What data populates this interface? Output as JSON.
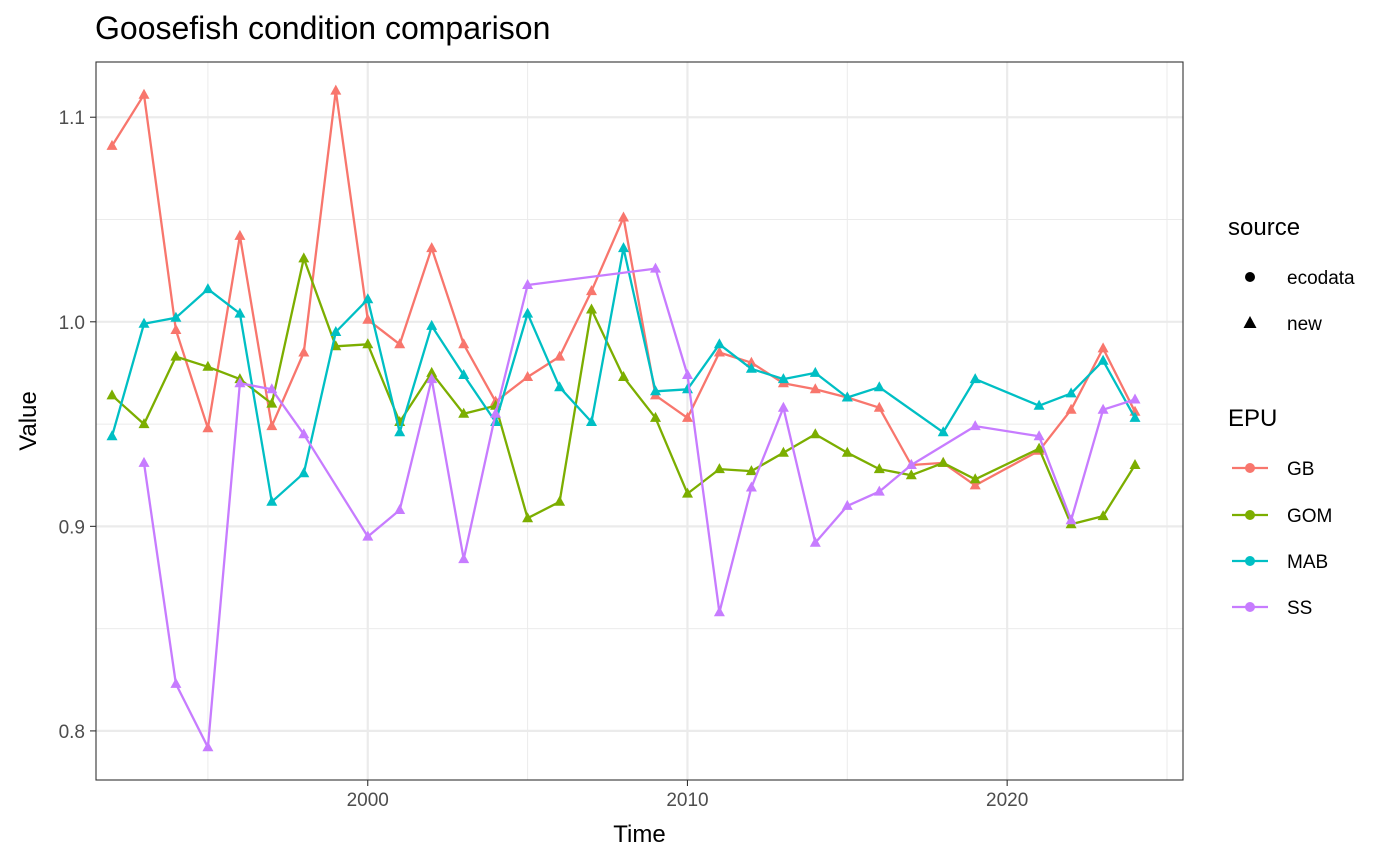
{
  "chart_data": {
    "type": "line",
    "title": "Goosefish condition comparison",
    "xlabel": "Time",
    "ylabel": "Value",
    "xlim": [
      1991.5,
      2025.5
    ],
    "ylim": [
      0.776,
      1.127
    ],
    "x_ticks": [
      2000,
      2010,
      2020
    ],
    "x_tick_labels": [
      "2000",
      "2010",
      "2020"
    ],
    "y_ticks": [
      0.8,
      0.9,
      1.0,
      1.1
    ],
    "y_tick_labels": [
      "0.8",
      "0.9",
      "1.0",
      "1.1"
    ],
    "grid": true,
    "legend_position": "right",
    "legends": {
      "source": {
        "title": "source",
        "items": [
          {
            "label": "ecodata",
            "shape": "circle"
          },
          {
            "label": "new",
            "shape": "triangle"
          }
        ]
      },
      "epu": {
        "title": "EPU",
        "items": [
          {
            "label": "GB",
            "color": "#F8766D"
          },
          {
            "label": "GOM",
            "color": "#7CAE00"
          },
          {
            "label": "MAB",
            "color": "#00BFC4"
          },
          {
            "label": "SS",
            "color": "#C77CFF"
          }
        ]
      }
    },
    "series": [
      {
        "name": "GB",
        "color": "#F8766D",
        "x": [
          1992,
          1993,
          1994,
          1995,
          1996,
          1997,
          1998,
          1999,
          2000,
          2001,
          2002,
          2003,
          2004,
          2005,
          2006,
          2007,
          2008,
          2009,
          2010,
          2011,
          2012,
          2013,
          2014,
          2015,
          2016,
          2017,
          2018,
          2019,
          2021,
          2022,
          2023,
          2024
        ],
        "y": [
          1.086,
          1.111,
          0.996,
          0.948,
          1.042,
          0.949,
          0.985,
          1.113,
          1.001,
          0.989,
          1.036,
          0.989,
          0.961,
          0.973,
          0.983,
          1.015,
          1.051,
          0.964,
          0.953,
          0.985,
          0.98,
          0.97,
          0.967,
          0.963,
          0.958,
          0.93,
          0.931,
          0.92,
          0.937,
          0.957,
          0.987,
          0.956
        ]
      },
      {
        "name": "GOM",
        "color": "#7CAE00",
        "x": [
          1992,
          1993,
          1994,
          1995,
          1996,
          1997,
          1998,
          1999,
          2000,
          2001,
          2002,
          2003,
          2004,
          2005,
          2006,
          2007,
          2008,
          2009,
          2010,
          2011,
          2012,
          2013,
          2014,
          2015,
          2016,
          2017,
          2018,
          2019,
          2021,
          2022,
          2023,
          2024
        ],
        "y": [
          0.964,
          0.95,
          0.983,
          0.978,
          0.972,
          0.96,
          1.031,
          0.988,
          0.989,
          0.951,
          0.975,
          0.955,
          0.959,
          0.904,
          0.912,
          1.006,
          0.973,
          0.953,
          0.916,
          0.928,
          0.927,
          0.936,
          0.945,
          0.936,
          0.928,
          0.925,
          0.931,
          0.923,
          0.938,
          0.901,
          0.905,
          0.93
        ]
      },
      {
        "name": "MAB",
        "color": "#00BFC4",
        "x": [
          1992,
          1993,
          1994,
          1995,
          1996,
          1997,
          1998,
          1999,
          2000,
          2001,
          2002,
          2003,
          2004,
          2005,
          2006,
          2007,
          2008,
          2009,
          2010,
          2011,
          2012,
          2013,
          2014,
          2015,
          2016,
          2018,
          2019,
          2021,
          2022,
          2023,
          2024
        ],
        "y": [
          0.944,
          0.999,
          1.002,
          1.016,
          1.004,
          0.912,
          0.926,
          0.995,
          1.011,
          0.946,
          0.998,
          0.974,
          0.951,
          1.004,
          0.968,
          0.951,
          1.036,
          0.966,
          0.967,
          0.989,
          0.977,
          0.972,
          0.975,
          0.963,
          0.968,
          0.946,
          0.972,
          0.959,
          0.965,
          0.981,
          0.953
        ]
      },
      {
        "name": "SS",
        "color": "#C77CFF",
        "x": [
          1993,
          1994,
          1995,
          1996,
          1997,
          1998,
          2000,
          2001,
          2002,
          2003,
          2004,
          2005,
          2009,
          2010,
          2011,
          2012,
          2013,
          2014,
          2015,
          2016,
          2017,
          2019,
          2021,
          2022,
          2023,
          2024
        ],
        "y": [
          0.931,
          0.823,
          0.792,
          0.97,
          0.967,
          0.945,
          0.895,
          0.908,
          0.972,
          0.884,
          0.955,
          1.018,
          1.026,
          0.974,
          0.858,
          0.919,
          0.958,
          0.892,
          0.91,
          0.917,
          0.93,
          0.949,
          0.944,
          0.903,
          0.957,
          0.962
        ]
      }
    ]
  }
}
